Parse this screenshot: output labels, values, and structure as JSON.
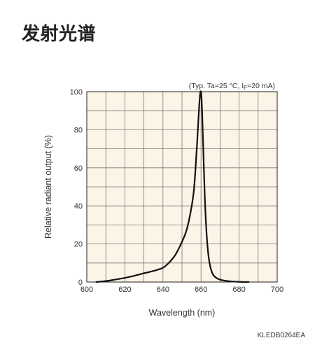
{
  "page": {
    "title": "发射光谱",
    "code": "KLEDB0264EA"
  },
  "chart_data": {
    "type": "line",
    "title": "",
    "conditions": "(Typ. Ta=25 °C, IF=20 mA)",
    "xlabel": "Wavelength (nm)",
    "ylabel": "Relative radiant output (%)",
    "xlim": [
      600,
      700
    ],
    "ylim": [
      0,
      100
    ],
    "xticks": [
      600,
      620,
      640,
      660,
      680,
      700
    ],
    "yticks": [
      0,
      20,
      40,
      60,
      80,
      100
    ],
    "grid": true,
    "legend": "none",
    "series": [
      {
        "color": "#111111",
        "x": [
          605,
          610,
          615,
          620,
          625,
          630,
          635,
          640,
          643,
          646,
          649,
          652,
          654,
          656,
          657,
          658,
          659,
          659.7,
          660.3,
          661,
          662,
          663,
          664,
          665,
          666,
          667,
          669,
          672,
          676,
          680,
          685
        ],
        "y": [
          0,
          0.5,
          1.3,
          2.2,
          3.3,
          4.6,
          5.8,
          7.5,
          10,
          13.5,
          19,
          26,
          34,
          46,
          58,
          74,
          92,
          100,
          96,
          76,
          44,
          24,
          13,
          7.5,
          4.5,
          3,
          1.6,
          0.8,
          0.3,
          0.1,
          0
        ]
      }
    ]
  }
}
